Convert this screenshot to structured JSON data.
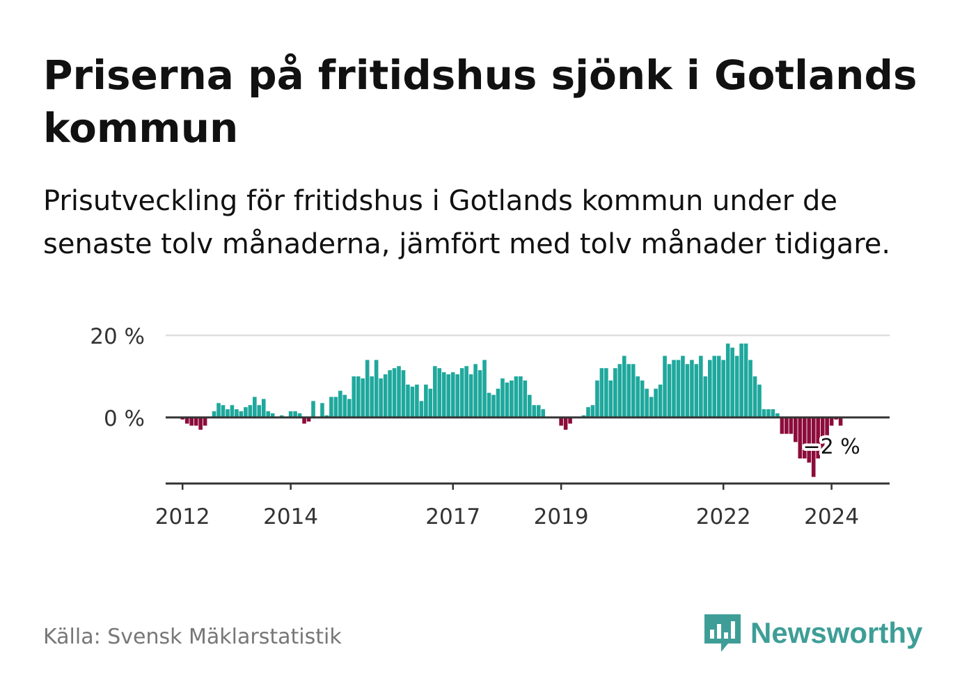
{
  "title": "Priserna på fritidshus sjönk i Gotlands kommun",
  "subtitle": "Prisutveckling för fritidshus i Gotlands kommun under de senaste tolv månaderna, jämfört med tolv månader tidigare.",
  "source": "Källa: Svensk Mäklarstatistik",
  "logo_text": "Newsworthy",
  "colors": {
    "positive": "#1fa89d",
    "negative": "#8c0c3a",
    "axis": "#333333",
    "grid": "#dddddd",
    "brand": "#3e9e97"
  },
  "chart_data": {
    "type": "bar",
    "x_start": "2011-10",
    "x_end": "2024-04",
    "x_ticks": [
      "2012",
      "2014",
      "2017",
      "2019",
      "2022",
      "2024"
    ],
    "y_ticks": [
      {
        "value": 20,
        "label": "20 %"
      },
      {
        "value": 0,
        "label": "0 %"
      }
    ],
    "ylim": [
      -16,
      20
    ],
    "annotation": {
      "text": "−2 %",
      "month": "2024-01",
      "value": -2
    },
    "values": [
      0,
      0,
      0,
      -0.5,
      -1.5,
      -2,
      -2,
      -3,
      -2,
      0,
      1.5,
      3.5,
      3,
      2,
      3,
      2,
      1.5,
      2.5,
      3,
      5,
      3,
      4.5,
      1.5,
      1,
      0,
      0.5,
      0,
      1.5,
      1.5,
      1,
      -1.5,
      -1,
      4,
      0,
      3.5,
      0.5,
      5,
      5,
      6.5,
      5.5,
      4.5,
      10,
      10,
      9.5,
      14,
      10,
      14,
      9.5,
      10.5,
      11.5,
      12,
      12.5,
      11.5,
      8,
      7.5,
      8,
      4,
      8,
      7,
      12.5,
      12,
      11,
      10.5,
      11,
      10.5,
      12,
      12.5,
      10.5,
      13,
      11.5,
      14,
      6,
      5.5,
      7,
      9.5,
      8.5,
      9,
      10,
      10,
      9,
      5.5,
      3,
      3,
      2,
      0,
      0,
      0,
      -2,
      -3,
      -1.5,
      0,
      0,
      0.5,
      2.5,
      3,
      9,
      12,
      12,
      9,
      12,
      13,
      15,
      13,
      13,
      10,
      9,
      7,
      5,
      7,
      8,
      15,
      13,
      14,
      14,
      15,
      13,
      14,
      13,
      15,
      10,
      14,
      15,
      15,
      14,
      18,
      17,
      15,
      18,
      18,
      14,
      10,
      8,
      2,
      2,
      2,
      1,
      -4,
      -4,
      -4,
      -6,
      -10,
      -10,
      -11,
      -14.5,
      -10,
      -8,
      -6,
      -2,
      -0.5,
      -2
    ]
  }
}
